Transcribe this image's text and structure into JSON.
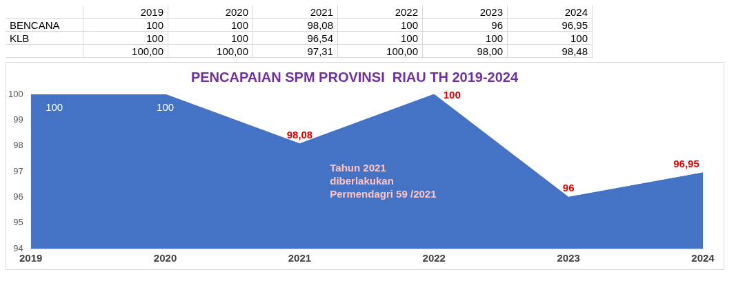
{
  "chart_data": [
    {
      "type": "heatmap",
      "categories": [
        "2019",
        "2020",
        "2021",
        "2022",
        "2023",
        "2024"
      ],
      "y_categories": [
        "BENCANA",
        "KLB",
        null
      ],
      "cells": [
        [
          100,
          100,
          98.08,
          100,
          96,
          96.95
        ],
        [
          100,
          100,
          96.54,
          100,
          100,
          100
        ],
        [
          100,
          100,
          97.31,
          100,
          98,
          98.48
        ]
      ],
      "cell_labels": [
        [
          "100",
          "100",
          "98,08",
          "100",
          "96",
          "96,95"
        ],
        [
          "100",
          "100",
          "96,54",
          "100",
          "100",
          "100"
        ],
        [
          "100,00",
          "100,00",
          "97,31",
          "100,00",
          "98,00",
          "98,48"
        ]
      ]
    },
    {
      "type": "area",
      "title": "PENCAPAIAN SPM PROVINSI  RIAU TH 2019-2024",
      "categories": [
        "2019",
        "2020",
        "2021",
        "2022",
        "2023",
        "2024"
      ],
      "series": [
        {
          "color": "#4472c4",
          "values": [
            100,
            100,
            98.08,
            100,
            96,
            96.95
          ],
          "value_labels": [
            "100",
            "100",
            "98,08",
            "100",
            "96",
            "96,95"
          ]
        }
      ],
      "ylim": [
        94,
        100
      ],
      "yticks": [
        94,
        95,
        96,
        97,
        98,
        99,
        100
      ],
      "grid": false,
      "legend": false,
      "annotations": [
        "Tahun 2021\ndiberlakukan\nPermendagri 59 /2021"
      ]
    }
  ]
}
